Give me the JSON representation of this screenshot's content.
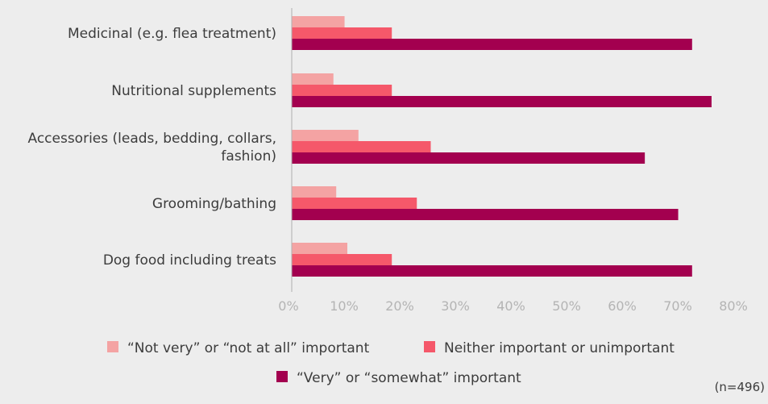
{
  "chart_data": {
    "type": "bar",
    "orientation": "horizontal",
    "categories": [
      [
        "Medicinal (e.g. flea treatment)"
      ],
      [
        "Nutritional supplements"
      ],
      [
        "Accessories (leads, bedding, collars,",
        "fashion)"
      ],
      [
        "Grooming/bathing"
      ],
      [
        "Dog food including treats"
      ]
    ],
    "series": [
      {
        "name": "“Not very” or “not at all” important",
        "color": "#f4a3a3",
        "values": [
          9.5,
          7.5,
          12,
          8,
          10
        ]
      },
      {
        "name": "Neither important or unimportant",
        "color": "#f5586a",
        "values": [
          18,
          18,
          25,
          22.5,
          18
        ]
      },
      {
        "name": "“Very” or “somewhat” important",
        "color": "#a3004f",
        "values": [
          72,
          75.5,
          63.5,
          69.5,
          72
        ]
      }
    ],
    "xlim": [
      0,
      80
    ],
    "xticks": [
      "0%",
      "10%",
      "20%",
      "30%",
      "40%",
      "50%",
      "60%",
      "70%",
      "80%"
    ],
    "grid": false,
    "legend_position": "bottom"
  },
  "note": "(n=496)"
}
